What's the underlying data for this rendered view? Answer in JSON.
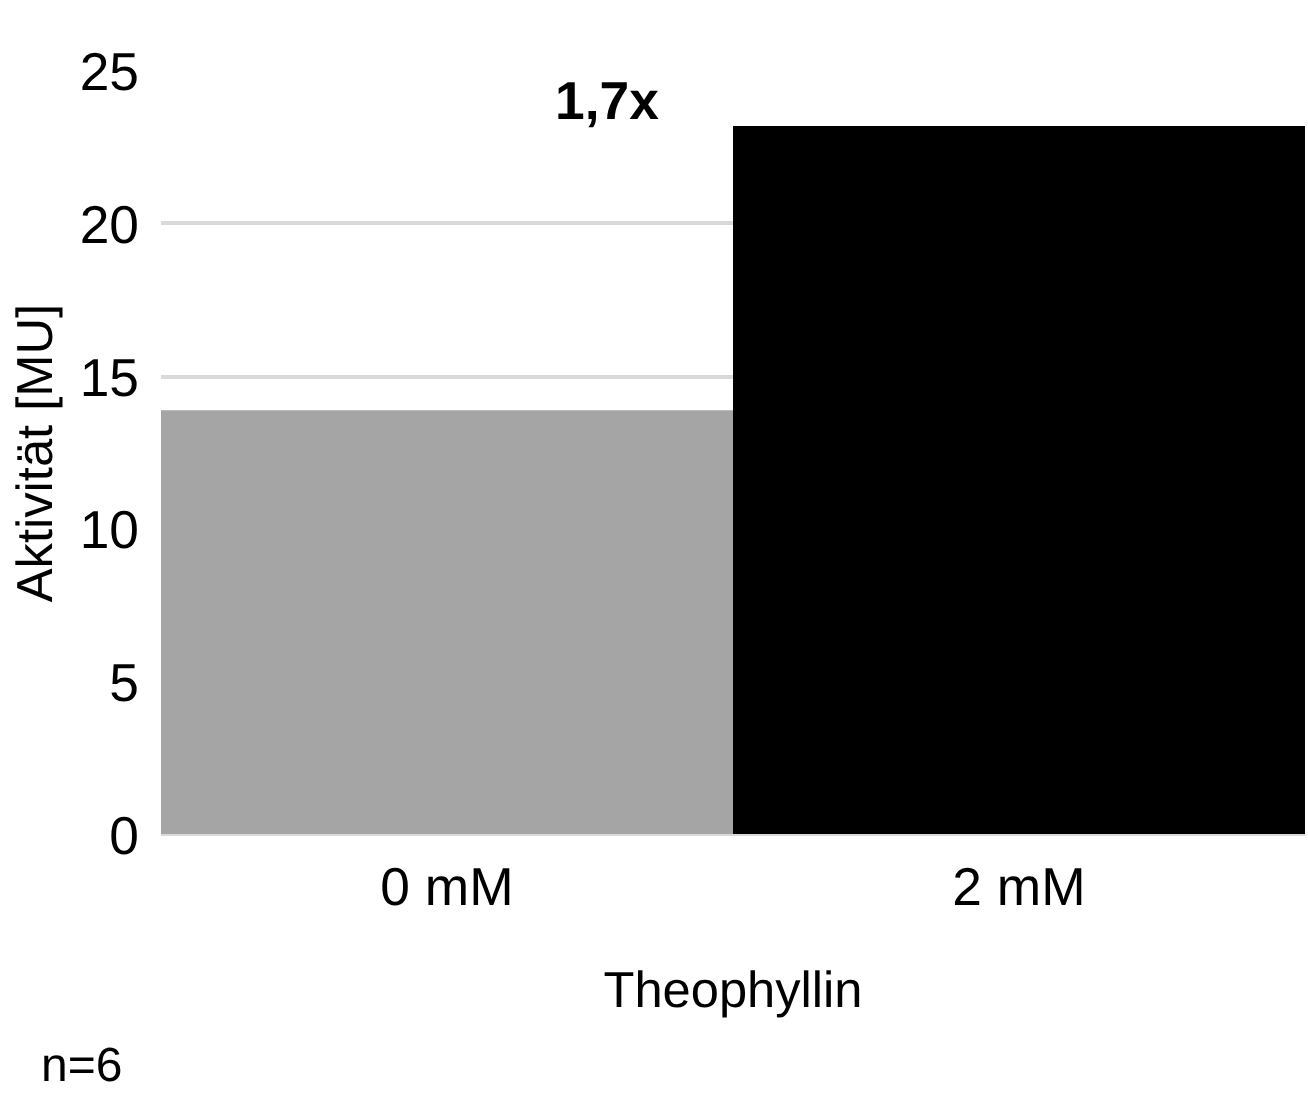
{
  "chart_data": {
    "type": "bar",
    "categories": [
      "0 mM",
      "2 mM"
    ],
    "values": [
      13.9,
      23.2
    ],
    "colors": [
      "#a5a5a5",
      "#000000"
    ],
    "xlabel": "Theophyllin",
    "ylabel": "Aktivität [MU]",
    "ylim": [
      0,
      25
    ],
    "yticks": [
      0,
      5,
      10,
      15,
      20,
      25
    ],
    "grid": "y",
    "annotations": [
      "1,7x",
      "n=6"
    ]
  }
}
